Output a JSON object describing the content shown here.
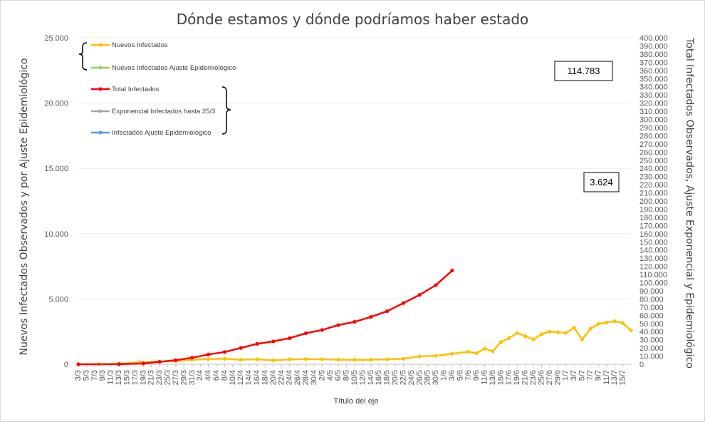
{
  "chart_data": {
    "type": "line",
    "title": "Dónde estamos y dónde podríamos haber estado",
    "xlabel": "Título del eje",
    "ylabel_left": "Nuevos Infectados Observados y por Ajuste Epidemiológico",
    "ylabel_right": "Total Infectados Observados, Ajuste Exponencial y Epidemiológico",
    "ylim_left": [
      0,
      25000
    ],
    "ylim_right": [
      0,
      400000
    ],
    "y_ticks_left": [
      "0",
      "5.000",
      "10.000",
      "15.000",
      "20.000",
      "25.000"
    ],
    "y_ticks_right": [
      "0",
      "10.000",
      "20.000",
      "30.000",
      "40.000",
      "50.000",
      "60.000",
      "70.000",
      "80.000",
      "90.000",
      "100.000",
      "110.000",
      "120.000",
      "130.000",
      "140.000",
      "150.000",
      "160.000",
      "170.000",
      "180.000",
      "190.000",
      "200.000",
      "210.000",
      "220.000",
      "230.000",
      "240.000",
      "250.000",
      "260.000",
      "270.000",
      "280.000",
      "290.000",
      "300.000",
      "310.000",
      "320.000",
      "330.000",
      "340.000",
      "350.000",
      "360.000",
      "370.000",
      "380.000",
      "390.000",
      "400.000"
    ],
    "x_tick_labels": [
      "3/3",
      "5/3",
      "7/3",
      "9/3",
      "11/3",
      "13/3",
      "15/3",
      "17/3",
      "19/3",
      "21/3",
      "23/3",
      "25/3",
      "27/3",
      "29/3",
      "31/3",
      "2/4",
      "4/4",
      "6/4",
      "8/4",
      "10/4",
      "12/4",
      "14/4",
      "16/4",
      "18/4",
      "20/4",
      "22/4",
      "24/4",
      "26/4",
      "28/4",
      "30/4",
      "2/5",
      "4/5",
      "6/5",
      "8/5",
      "10/5",
      "12/5",
      "14/5",
      "16/5",
      "18/5",
      "20/5",
      "22/5",
      "24/5",
      "26/5",
      "28/5",
      "30/5",
      "1/6",
      "3/6",
      "5/6",
      "7/6",
      "9/6",
      "11/6",
      "13/6",
      "15/6",
      "17/6",
      "19/6",
      "21/6",
      "23/6",
      "25/6",
      "27/6",
      "29/6",
      "1/7",
      "3/7",
      "5/7",
      "7/7",
      "9/7",
      "11/7",
      "13/7",
      "15/7"
    ],
    "x_start_index": 0,
    "x_end_index": 136,
    "legend_group_1": [
      "Nuevos Infectados",
      "Nuevos Infectados Ajuste Epidemiológico"
    ],
    "legend_group_2": [
      "Total Infectados",
      "Exponencial Infectados hasta 25/3",
      "Infectados Ajuste Epidemiológico"
    ],
    "series": [
      {
        "name": "Nuevos Infectados",
        "axis": "left",
        "color": "#FFC000",
        "points": [
          [
            0,
            1
          ],
          [
            5,
            5
          ],
          [
            10,
            40
          ],
          [
            15,
            150
          ],
          [
            20,
            200
          ],
          [
            24,
            250
          ],
          [
            28,
            350
          ],
          [
            32,
            400
          ],
          [
            36,
            420
          ],
          [
            40,
            350
          ],
          [
            44,
            380
          ],
          [
            48,
            300
          ],
          [
            52,
            370
          ],
          [
            56,
            400
          ],
          [
            60,
            380
          ],
          [
            64,
            350
          ],
          [
            68,
            340
          ],
          [
            72,
            350
          ],
          [
            76,
            380
          ],
          [
            80,
            420
          ],
          [
            84,
            600
          ],
          [
            88,
            650
          ],
          [
            92,
            800
          ],
          [
            96,
            950
          ],
          [
            98,
            850
          ],
          [
            100,
            1200
          ],
          [
            102,
            1000
          ],
          [
            104,
            1700
          ],
          [
            106,
            2000
          ],
          [
            108,
            2400
          ],
          [
            110,
            2150
          ],
          [
            112,
            1900
          ],
          [
            114,
            2300
          ],
          [
            116,
            2500
          ],
          [
            118,
            2450
          ],
          [
            120,
            2400
          ],
          [
            122,
            2800
          ],
          [
            124,
            1900
          ],
          [
            126,
            2700
          ],
          [
            128,
            3100
          ],
          [
            130,
            3200
          ],
          [
            132,
            3300
          ],
          [
            134,
            3150
          ],
          [
            136,
            2600
          ]
        ]
      },
      {
        "name": "Total Infectados",
        "axis": "right",
        "color": "#FF0000",
        "points": [
          [
            0,
            0
          ],
          [
            10,
            100
          ],
          [
            16,
            1000
          ],
          [
            20,
            3000
          ],
          [
            24,
            5000
          ],
          [
            28,
            8000
          ],
          [
            32,
            12000
          ],
          [
            36,
            15000
          ],
          [
            40,
            20000
          ],
          [
            44,
            25000
          ],
          [
            48,
            28000
          ],
          [
            52,
            32000
          ],
          [
            56,
            38000
          ],
          [
            60,
            42000
          ],
          [
            64,
            48000
          ],
          [
            68,
            52000
          ],
          [
            72,
            58000
          ],
          [
            76,
            65000
          ],
          [
            80,
            75000
          ],
          [
            84,
            85000
          ],
          [
            88,
            97000
          ],
          [
            92,
            114783
          ]
        ]
      },
      {
        "name": "Exponencial Infectados hasta 25/3",
        "axis": "right",
        "color": "#A5A5A5",
        "points": []
      },
      {
        "name": "Nuevos Infectados Ajuste Epidemiológico",
        "axis": "left",
        "color": "#92D050",
        "points": []
      },
      {
        "name": "Infectados Ajuste Epidemiológico",
        "axis": "left",
        "color": "#5B9BD5",
        "points": []
      }
    ],
    "annotations": [
      {
        "text": "114.783"
      },
      {
        "text": "3.624"
      }
    ]
  }
}
